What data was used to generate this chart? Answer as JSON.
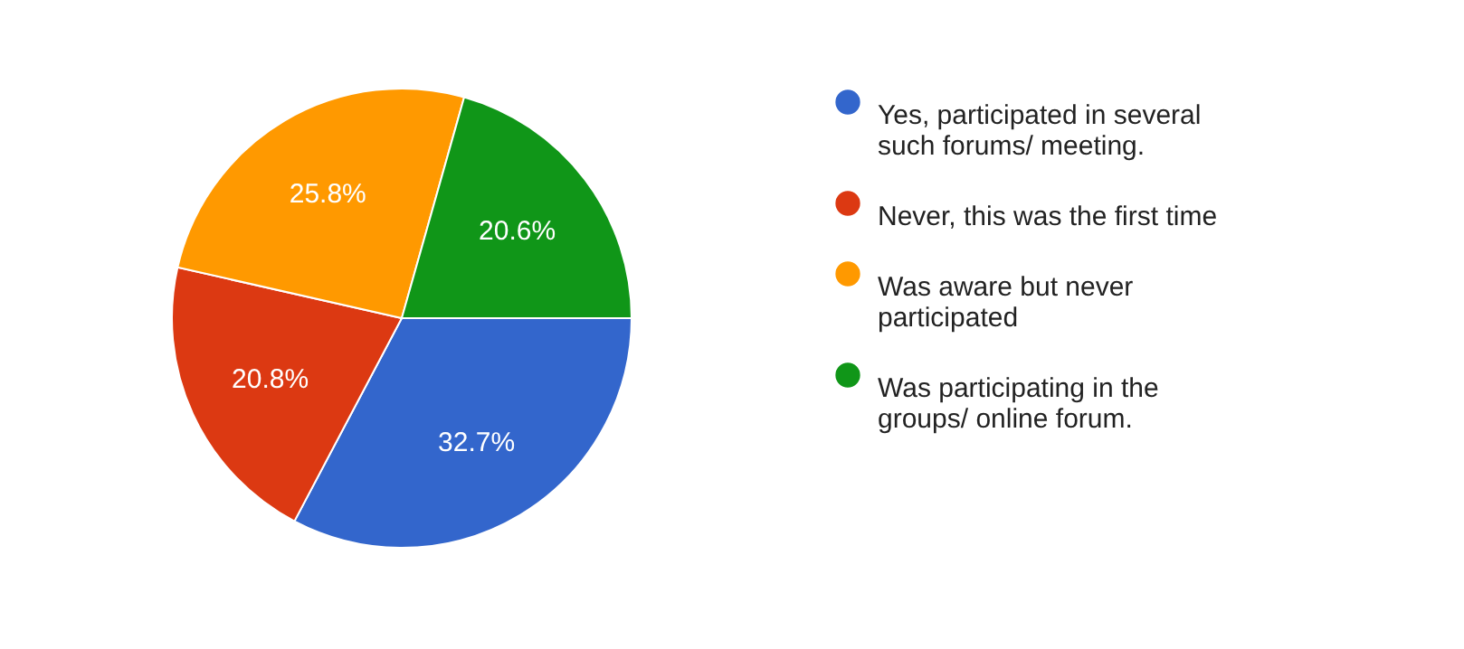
{
  "chart_data": {
    "type": "pie",
    "categories": [
      "Yes, participated in several such forums/ meeting.",
      "Never, this was the first time",
      "Was aware but never participated",
      "Was participating in the groups/ online forum."
    ],
    "values": [
      32.7,
      20.8,
      25.8,
      20.6
    ],
    "colors": [
      "#3366cc",
      "#dc3912",
      "#ff9900",
      "#109618"
    ],
    "value_labels": [
      "32.7%",
      "20.8%",
      "25.8%",
      "20.6%"
    ],
    "legend": "right"
  }
}
